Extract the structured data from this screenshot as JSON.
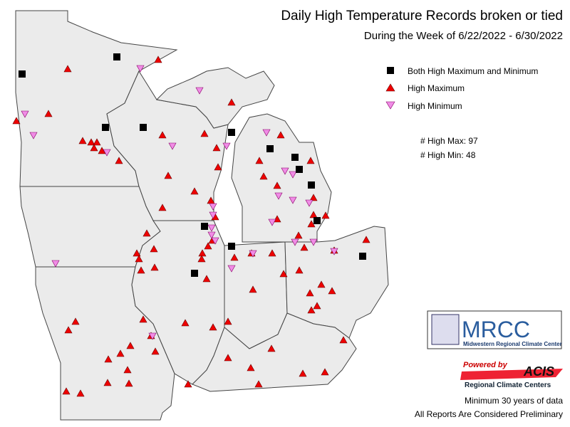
{
  "title": "Daily High Temperature Records broken or tied",
  "subtitle": "During the Week of 6/22/2022 - 6/30/2022",
  "legend": [
    {
      "label": "Both High Maximum and Minimum"
    },
    {
      "label": "High Maximum"
    },
    {
      "label": "High Minimum"
    }
  ],
  "counts": [
    "# High Max: 97",
    "# High Min: 48"
  ],
  "logo": {
    "name": "MRCC",
    "full": "Midwestern Regional Climate Center",
    "powered": "Powered by",
    "acis": "ACIS",
    "acis_full": "Regional Climate Centers"
  },
  "notes": [
    "Minimum 30 years of data",
    "All Reports Are Considered Preliminary"
  ]
}
